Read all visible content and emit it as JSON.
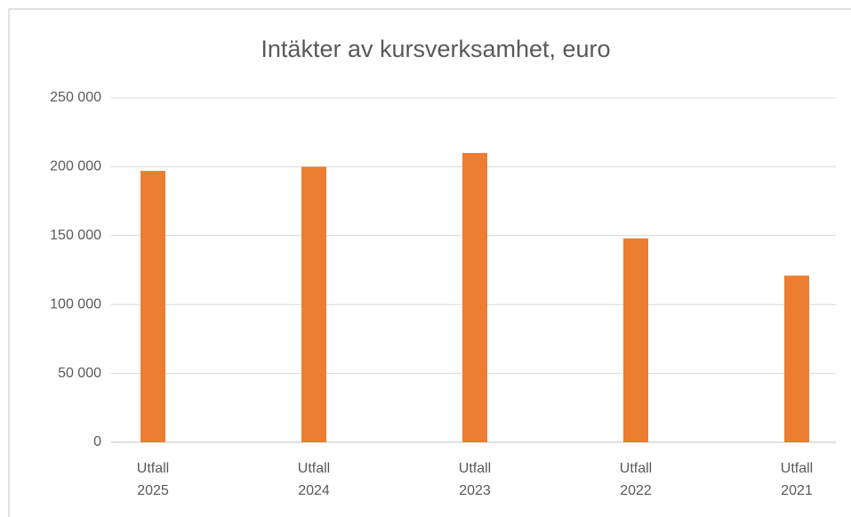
{
  "chart_data": {
    "type": "bar",
    "title": "Intäkter av kursverksamhet, euro",
    "categories": [
      "Utfall 2025",
      "Utfall 2024",
      "Utfall 2023",
      "Utfall 2022",
      "Utfall 2021"
    ],
    "values": [
      197000,
      200000,
      210000,
      148000,
      121000
    ],
    "color": "#ed7d31",
    "ylim": [
      0,
      250000
    ],
    "yticks": [
      0,
      {
        "value": 50000,
        "label": "50 000"
      },
      {
        "value": 100000,
        "label": "100 000"
      },
      {
        "value": 150000,
        "label": "150 000"
      },
      {
        "value": 200000,
        "label": "200 000"
      },
      {
        "value": 250000,
        "label": "250 000"
      }
    ],
    "grid": true
  }
}
